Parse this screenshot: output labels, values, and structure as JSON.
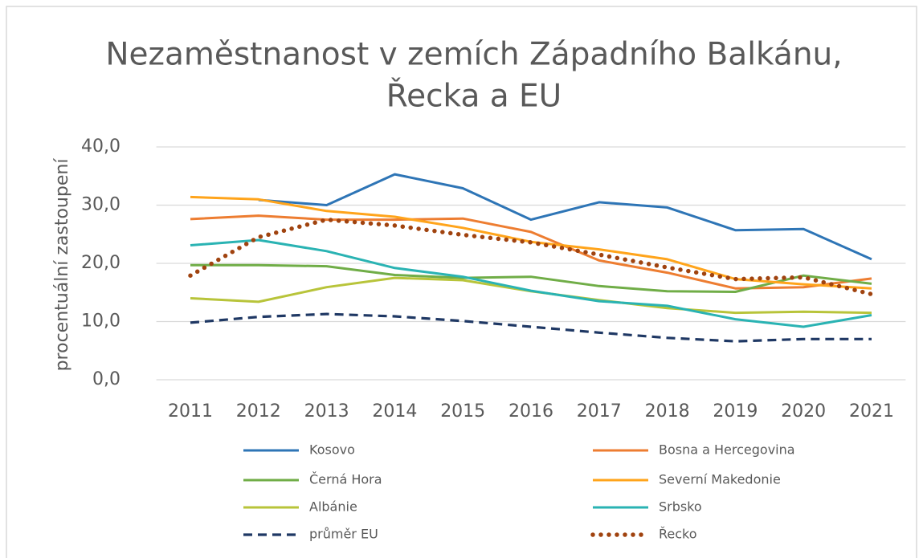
{
  "chart_data": {
    "type": "line",
    "title": [
      "Nezaměstnanost v zemích Západního Balkánu,",
      "Řecka a EU"
    ],
    "y_axis_label": "procentuální zastoupení",
    "categories": [
      "2011",
      "2012",
      "2013",
      "2014",
      "2015",
      "2016",
      "2017",
      "2018",
      "2019",
      "2020",
      "2021"
    ],
    "ylim": [
      0,
      40
    ],
    "yticks": [
      {
        "value": 0,
        "label": "0,0"
      },
      {
        "value": 10,
        "label": "10,0"
      },
      {
        "value": 20,
        "label": "20,0"
      },
      {
        "value": 30,
        "label": "30,0"
      },
      {
        "value": 40,
        "label": "40,0"
      }
    ],
    "grid": true,
    "legend": "bottom",
    "series": [
      {
        "name": "Kosovo",
        "color": "#2e75b6",
        "dash": "solid",
        "values": [
          null,
          30.9,
          30.0,
          35.3,
          32.9,
          27.5,
          30.5,
          29.6,
          25.7,
          25.9,
          20.7
        ]
      },
      {
        "name": "Bosna a Hercegovina",
        "color": "#ed7d31",
        "dash": "solid",
        "values": [
          27.6,
          28.2,
          27.5,
          27.5,
          27.7,
          25.4,
          20.5,
          18.4,
          15.7,
          15.9,
          17.4
        ]
      },
      {
        "name": "Černá Hora",
        "color": "#70ad47",
        "dash": "solid",
        "values": [
          19.7,
          19.7,
          19.5,
          18.0,
          17.5,
          17.7,
          16.1,
          15.2,
          15.1,
          17.9,
          16.5
        ]
      },
      {
        "name": "Severní Makedonie",
        "color": "#ffa41b",
        "dash": "solid",
        "values": [
          31.4,
          31.0,
          29.0,
          28.0,
          26.1,
          23.7,
          22.4,
          20.7,
          17.3,
          16.4,
          15.7
        ]
      },
      {
        "name": "Albánie",
        "color": "#b8c43a",
        "dash": "solid",
        "values": [
          14.0,
          13.4,
          15.9,
          17.5,
          17.1,
          15.2,
          13.7,
          12.3,
          11.5,
          11.7,
          11.5
        ]
      },
      {
        "name": "Srbsko",
        "color": "#2ab3b3",
        "dash": "solid",
        "values": [
          23.1,
          24.0,
          22.1,
          19.2,
          17.7,
          15.3,
          13.5,
          12.7,
          10.4,
          9.1,
          11.1
        ]
      },
      {
        "name": "průměr EU",
        "color": "#1f3864",
        "dash": "dashed",
        "values": [
          9.8,
          10.8,
          11.3,
          10.9,
          10.1,
          9.1,
          8.1,
          7.2,
          6.6,
          7.0,
          7.0
        ]
      },
      {
        "name": "Řecko",
        "color": "#a0430f",
        "dash": "dotted",
        "values": [
          17.9,
          24.5,
          27.5,
          26.5,
          24.9,
          23.6,
          21.5,
          19.3,
          17.3,
          17.6,
          14.7
        ]
      }
    ]
  }
}
